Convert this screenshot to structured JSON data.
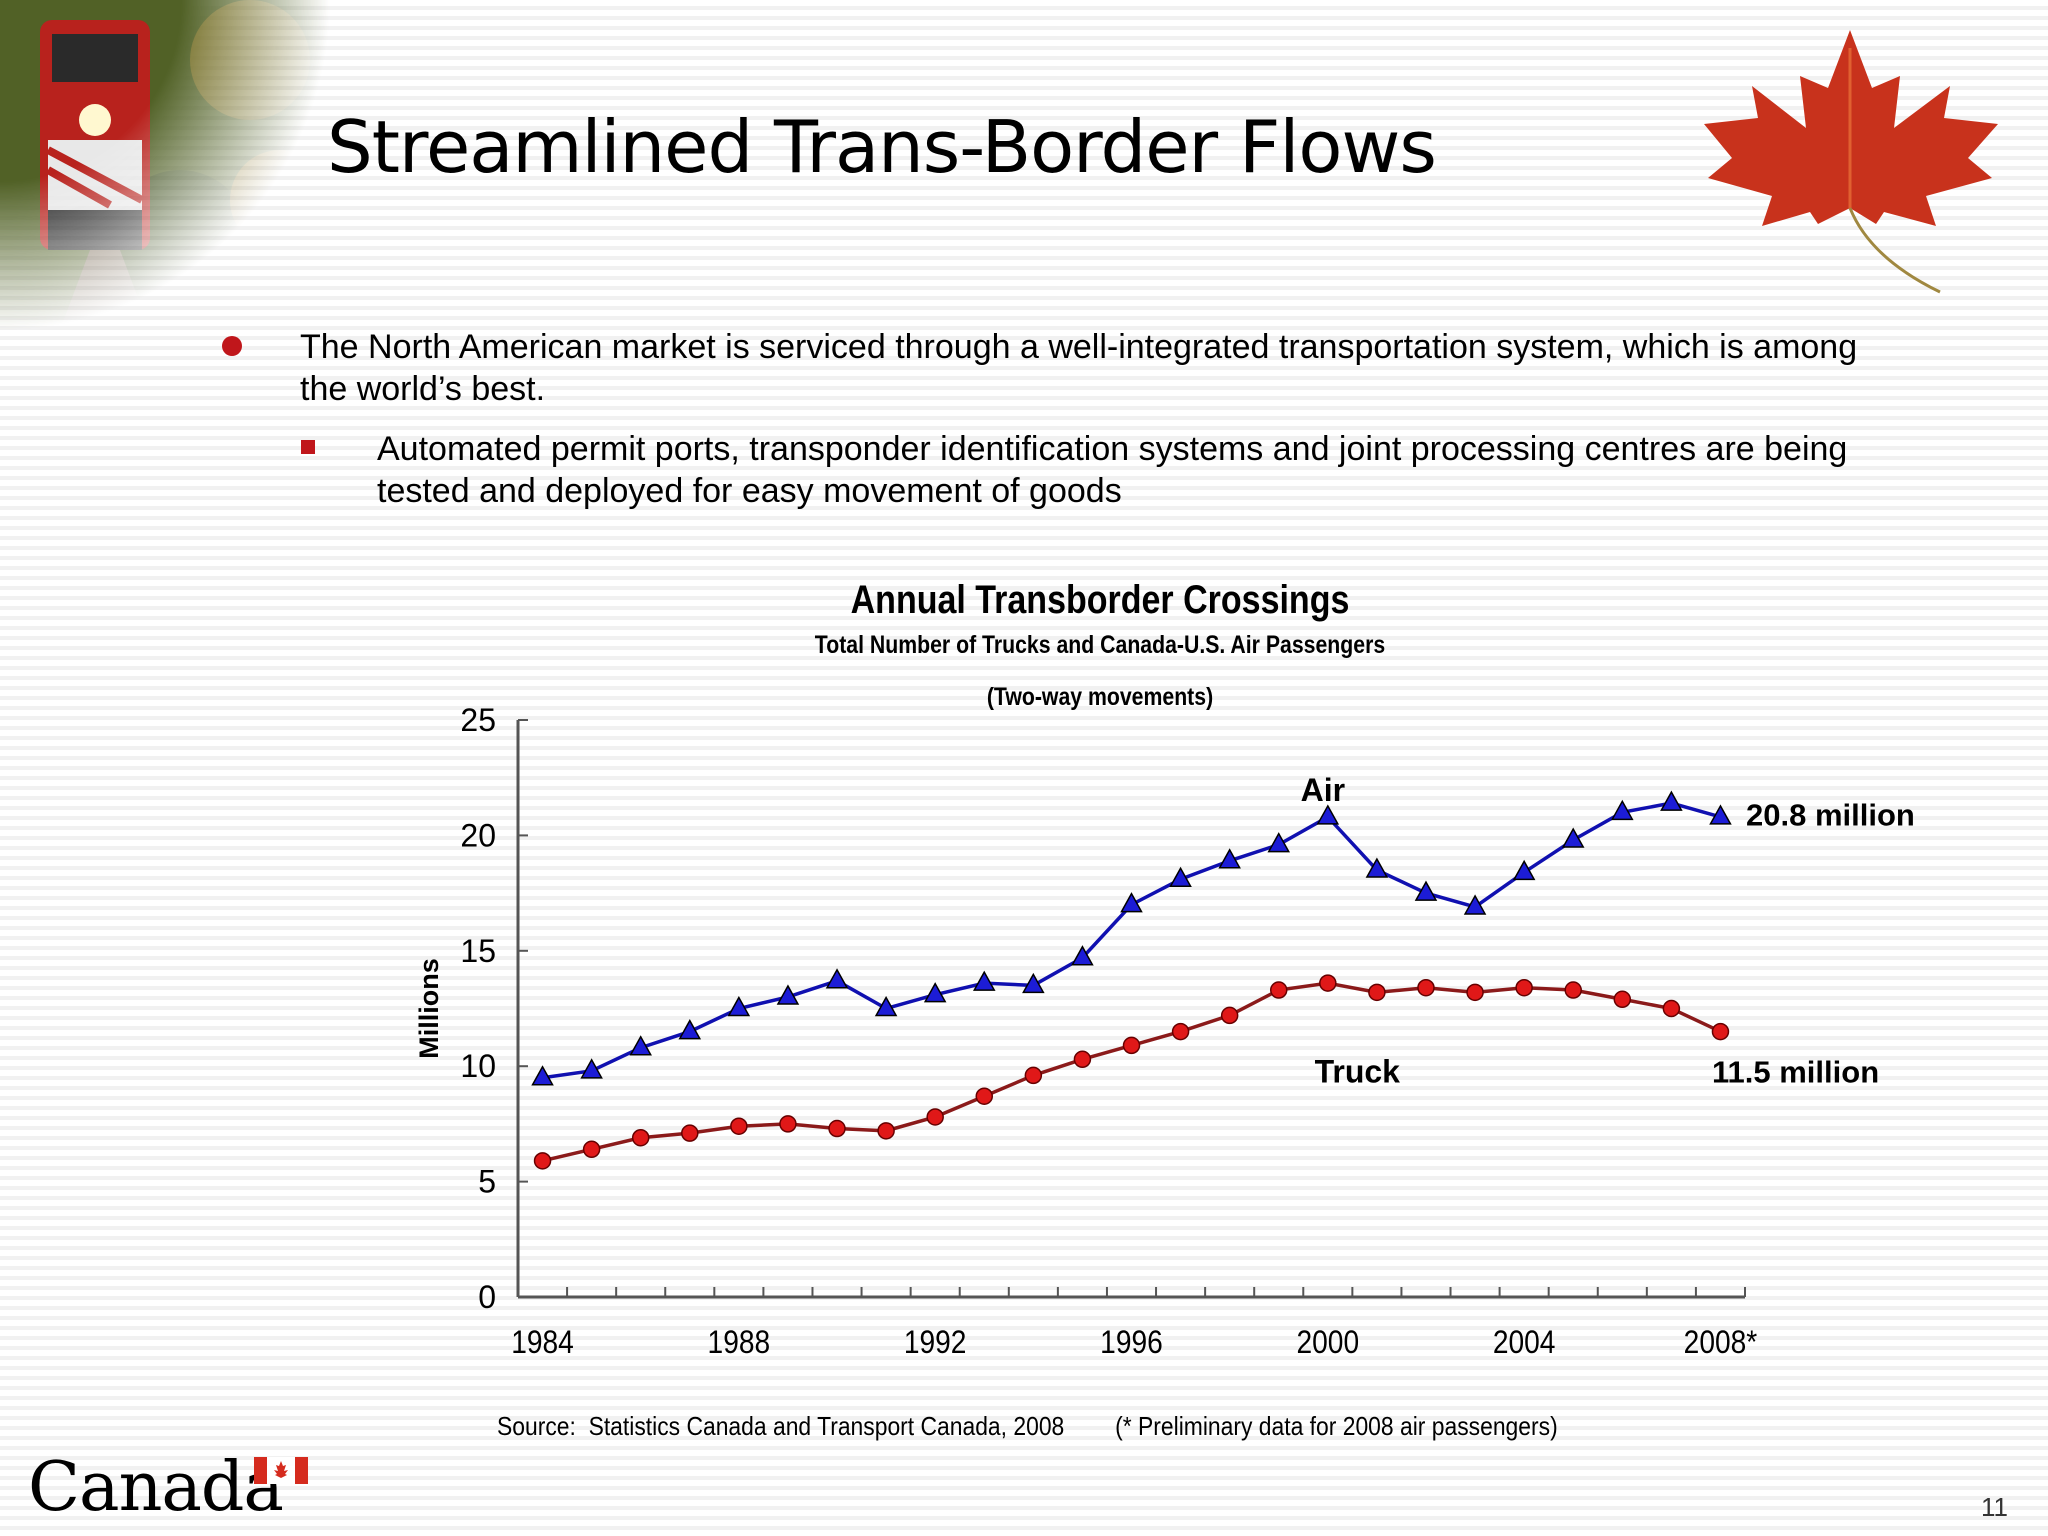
{
  "slide": {
    "title": "Streamlined Trans-Border Flows",
    "page_number": "11",
    "logo_text": "Canada",
    "bullets": [
      "The North American market is serviced through a well-integrated transportation system, which is among the world’s best.",
      "Automated permit ports, transponder identification systems and joint processing centres are being tested and deployed for easy movement of goods"
    ],
    "source": "Source:  Statistics Canada and Transport Canada, 2008",
    "note": "(* Preliminary data for 2008 air passengers)"
  },
  "chart_data": {
    "type": "line",
    "title": "Annual Transborder Crossings",
    "subtitle": "Total Number of Trucks and Canada-U.S. Air Passengers",
    "subtitle2": "(Two-way movements)",
    "ylabel": "Millions",
    "ylim": [
      0,
      25
    ],
    "yticks": [
      "0",
      "5",
      "10",
      "15",
      "20",
      "25"
    ],
    "x": [
      1984,
      1985,
      1986,
      1987,
      1988,
      1989,
      1990,
      1991,
      1992,
      1993,
      1994,
      1995,
      1996,
      1997,
      1998,
      1999,
      2000,
      2001,
      2002,
      2003,
      2004,
      2005,
      2006,
      2007,
      2008
    ],
    "xtick_labels": [
      "1984",
      "1988",
      "1992",
      "1996",
      "2000",
      "2004",
      "2008*"
    ],
    "grid": false,
    "series": [
      {
        "name": "Air",
        "color": "#1010b0",
        "marker": "triangle",
        "values": [
          9.5,
          9.8,
          10.8,
          11.5,
          12.5,
          13.0,
          13.7,
          12.5,
          13.1,
          13.6,
          13.5,
          14.7,
          17.0,
          18.1,
          18.9,
          19.6,
          20.8,
          18.5,
          17.5,
          16.9,
          18.4,
          19.8,
          21.0,
          21.4,
          20.8
        ]
      },
      {
        "name": "Truck",
        "color": "#8b1a1a",
        "marker": "circle",
        "values": [
          5.9,
          6.4,
          6.9,
          7.1,
          7.4,
          7.5,
          7.3,
          7.2,
          7.8,
          8.7,
          9.6,
          10.3,
          10.9,
          11.5,
          12.2,
          13.3,
          13.6,
          13.2,
          13.4,
          13.2,
          13.4,
          13.3,
          12.9,
          12.5,
          11.5
        ]
      }
    ],
    "annotations": [
      "20.8 million",
      "11.5 million"
    ]
  }
}
